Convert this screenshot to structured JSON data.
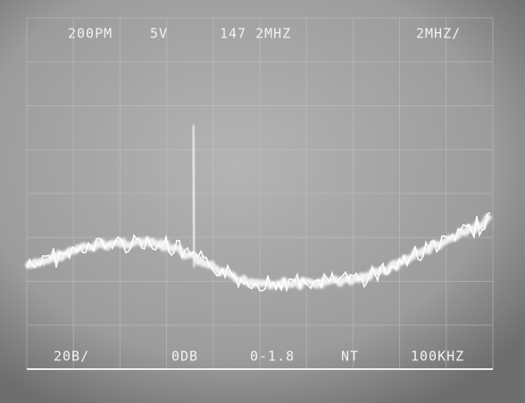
{
  "top_readout": {
    "left": "200PM",
    "mid": "5V",
    "center": "147 2MHZ",
    "right": "2MHZ/"
  },
  "bottom_readout": {
    "scale": "20B/",
    "level": "0DB",
    "marker": "0-1.8",
    "mode": "NT",
    "bandwidth": "100KHZ"
  }
}
